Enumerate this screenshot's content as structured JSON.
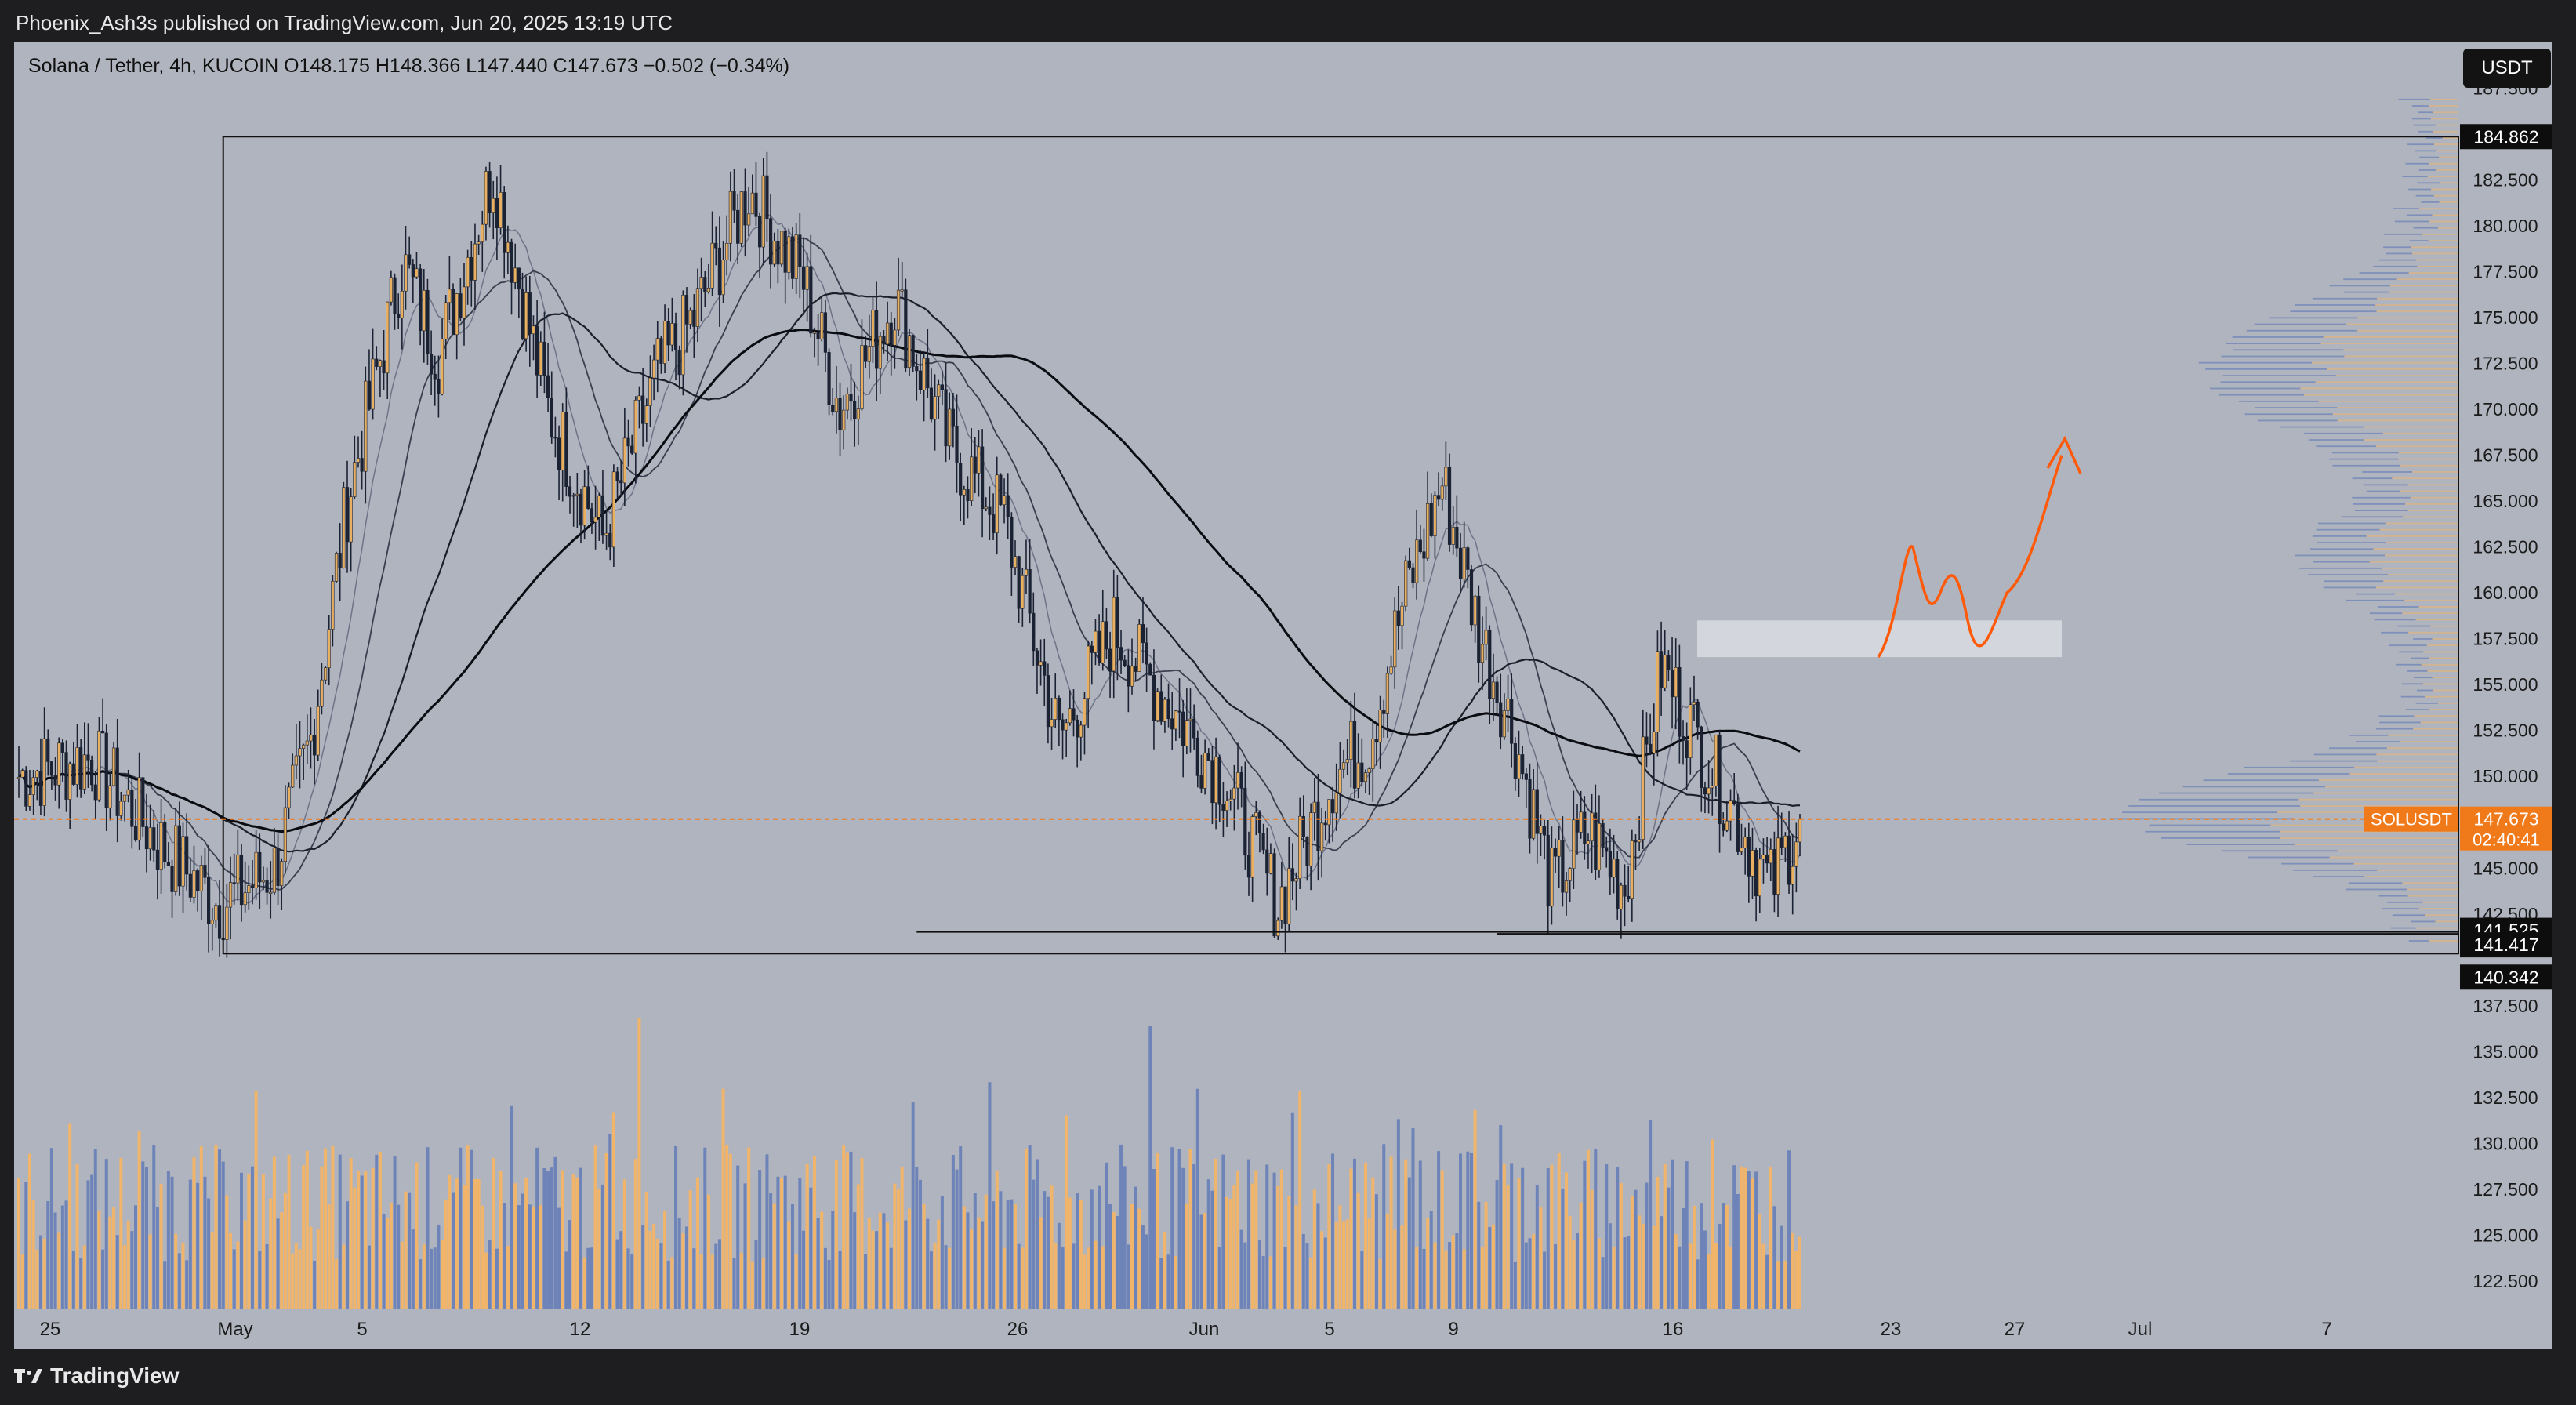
{
  "header": {
    "published": "Phoenix_Ash3s published on TradingView.com, Jun 20, 2025 13:19 UTC"
  },
  "symbol_line": "Solana / Tether, 4h, KUCOIN  O148.175  H148.366  L147.440  C147.673  −0.502 (−0.34%)",
  "currency_button": "USDT",
  "footer": {
    "brand": "TradingView"
  },
  "colors": {
    "up": "#e8b060",
    "down": "#1a2233",
    "vol_up": "#f0b46a",
    "vol_down": "#6e84b8",
    "price_line": "#f07a1a",
    "arrow": "#ff5a0a",
    "zone": "#d9dce2"
  },
  "chart_data": {
    "type": "candlestick",
    "ylim": [
      121,
      190
    ],
    "yticks": [
      187.5,
      182.5,
      180,
      177.5,
      175,
      172.5,
      170,
      167.5,
      165,
      162.5,
      160,
      157.5,
      155,
      152.5,
      150,
      145,
      142.5,
      137.5,
      135,
      132.5,
      130,
      127.5,
      125,
      122.5
    ],
    "xticks": [
      "25",
      "May",
      "5",
      "12",
      "19",
      "26",
      "Jun",
      "5",
      "9",
      "16",
      "23",
      "27",
      "Jul",
      "7"
    ],
    "current_price": {
      "label": "SOLUSDT",
      "value": "147.673",
      "countdown": "02:40:41"
    },
    "levels": [
      {
        "label": "184.862",
        "value": 184.862
      },
      {
        "label": "141.525",
        "value": 141.525
      },
      {
        "label": "141.417",
        "value": 141.417
      },
      {
        "label": "140.342",
        "value": 140.342
      }
    ],
    "trend_anchors": [
      [
        0,
        150
      ],
      [
        20,
        151
      ],
      [
        40,
        146
      ],
      [
        55,
        143
      ],
      [
        70,
        145
      ],
      [
        80,
        152
      ],
      [
        90,
        165
      ],
      [
        105,
        178
      ],
      [
        115,
        173
      ],
      [
        130,
        183
      ],
      [
        145,
        170
      ],
      [
        160,
        163
      ],
      [
        175,
        172
      ],
      [
        185,
        175
      ],
      [
        200,
        182
      ],
      [
        215,
        177
      ],
      [
        225,
        170
      ],
      [
        240,
        176
      ],
      [
        255,
        168
      ],
      [
        270,
        164
      ],
      [
        285,
        152
      ],
      [
        300,
        158
      ],
      [
        315,
        154
      ],
      [
        330,
        150
      ],
      [
        345,
        143
      ],
      [
        360,
        150
      ],
      [
        370,
        152
      ],
      [
        380,
        160
      ],
      [
        390,
        166
      ],
      [
        400,
        158
      ],
      [
        410,
        152
      ],
      [
        420,
        144
      ],
      [
        430,
        147
      ],
      [
        440,
        144
      ],
      [
        450,
        156
      ],
      [
        460,
        152
      ],
      [
        470,
        148
      ],
      [
        480,
        144
      ],
      [
        488,
        147.67
      ]
    ]
  }
}
